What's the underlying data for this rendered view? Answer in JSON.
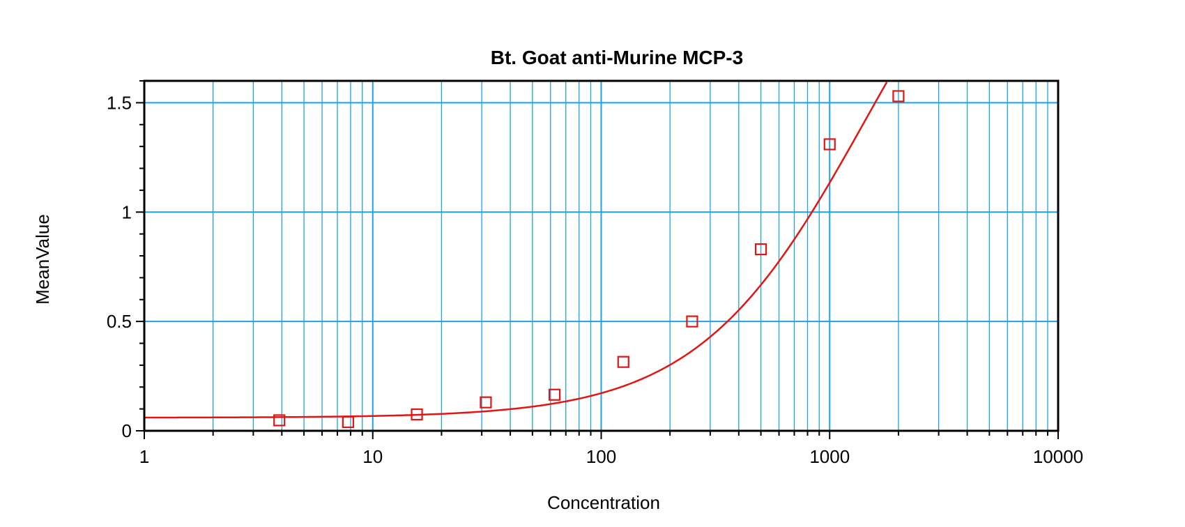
{
  "chart_data": {
    "type": "scatter",
    "title": "Bt. Goat anti-Murine MCP-3",
    "xlabel": "Concentration",
    "ylabel": "MeanValue",
    "x_scale": "log",
    "xlim": [
      1,
      10000
    ],
    "ylim": [
      0,
      1.6
    ],
    "grid": true,
    "x_ticks": [
      {
        "value": 1,
        "label": "1"
      },
      {
        "value": 10,
        "label": "10"
      },
      {
        "value": 100,
        "label": "100"
      },
      {
        "value": 1000,
        "label": "1000"
      },
      {
        "value": 10000,
        "label": "10000"
      }
    ],
    "y_ticks": [
      {
        "value": 0,
        "label": "0"
      },
      {
        "value": 0.5,
        "label": "0.5"
      },
      {
        "value": 1,
        "label": "1"
      },
      {
        "value": 1.5,
        "label": "1.5"
      }
    ],
    "points": [
      {
        "x": 3.9,
        "y": 0.048
      },
      {
        "x": 7.8,
        "y": 0.04
      },
      {
        "x": 15.6,
        "y": 0.075
      },
      {
        "x": 31.25,
        "y": 0.13
      },
      {
        "x": 62.5,
        "y": 0.165
      },
      {
        "x": 125,
        "y": 0.315
      },
      {
        "x": 250,
        "y": 0.5
      },
      {
        "x": 500,
        "y": 0.83
      },
      {
        "x": 1000,
        "y": 1.31
      },
      {
        "x": 2000,
        "y": 1.53
      }
    ],
    "fit_curve": {
      "model": "4PL",
      "bottom": 0.06,
      "top": 2.8,
      "ec50": 1450,
      "hill": 1.18
    },
    "colors": {
      "series": "#e31414",
      "grid": "#1aa3e8",
      "frame": "#000000"
    }
  }
}
